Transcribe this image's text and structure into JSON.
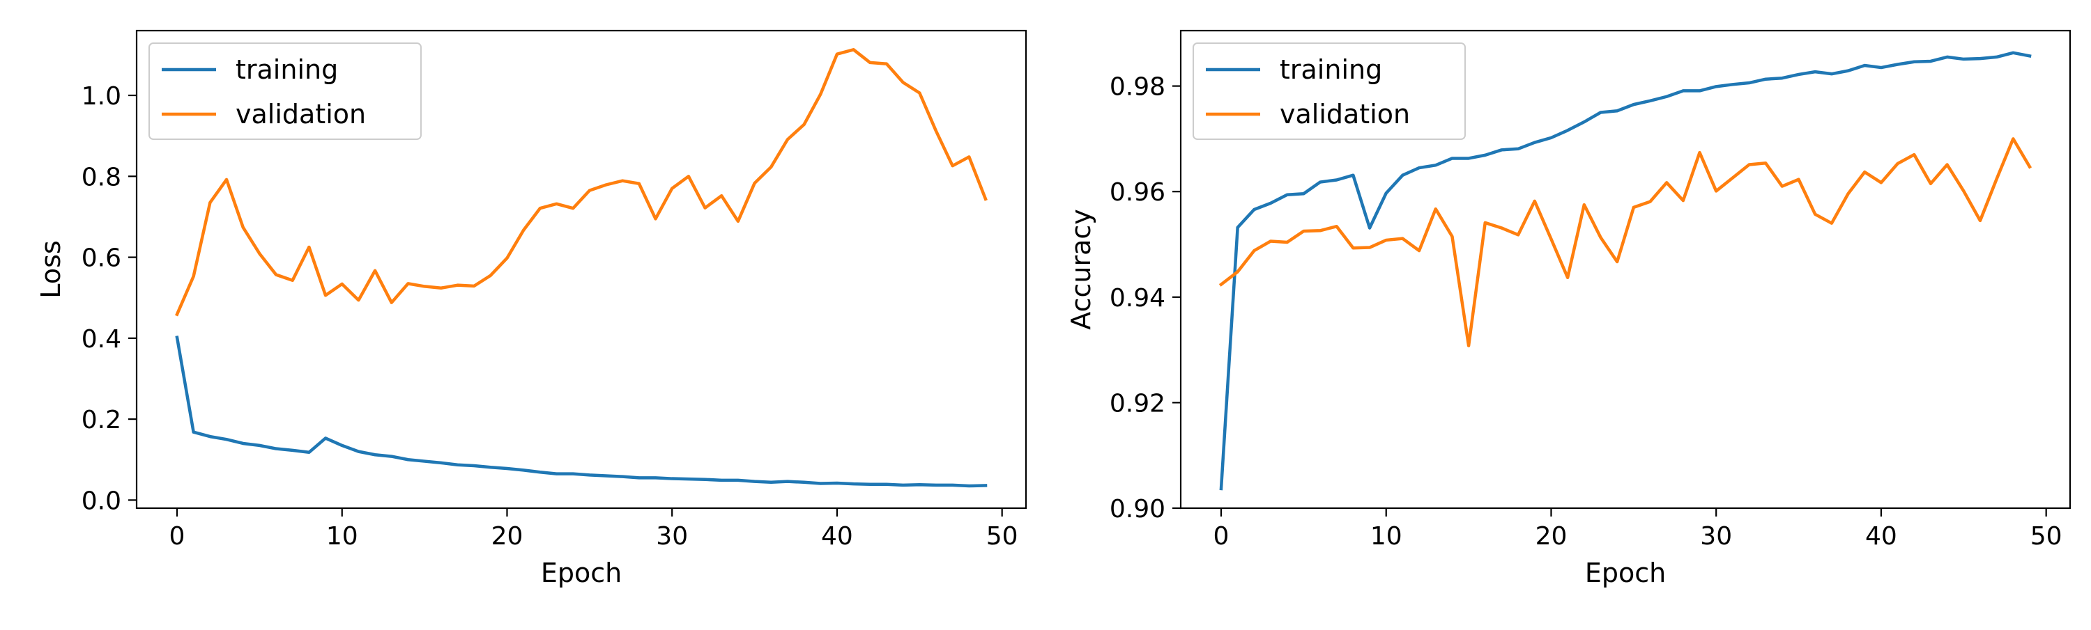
{
  "chart_data": [
    {
      "type": "line",
      "xlabel": "Epoch",
      "ylabel": "Loss",
      "xlim": [
        -2.45,
        51.45
      ],
      "ylim": [
        -0.02,
        1.16
      ],
      "xticks": [
        0,
        10,
        20,
        30,
        40,
        50
      ],
      "xtick_labels": [
        "0",
        "10",
        "20",
        "30",
        "40",
        "50"
      ],
      "yticks": [
        0.0,
        0.2,
        0.4,
        0.6,
        0.8,
        1.0
      ],
      "ytick_labels": [
        "0.0",
        "0.2",
        "0.4",
        "0.6",
        "0.8",
        "1.0"
      ],
      "grid": false,
      "legend": "upper-left",
      "x": [
        0,
        1,
        2,
        3,
        4,
        5,
        6,
        7,
        8,
        9,
        10,
        11,
        12,
        13,
        14,
        15,
        16,
        17,
        18,
        19,
        20,
        21,
        22,
        23,
        24,
        25,
        26,
        27,
        28,
        29,
        30,
        31,
        32,
        33,
        34,
        35,
        36,
        37,
        38,
        39,
        40,
        41,
        42,
        43,
        44,
        45,
        46,
        47,
        48,
        49
      ],
      "series": [
        {
          "name": "training",
          "color": "#1f77b4",
          "values": [
            0.402,
            0.168,
            0.157,
            0.15,
            0.14,
            0.135,
            0.127,
            0.123,
            0.118,
            0.153,
            0.135,
            0.12,
            0.112,
            0.108,
            0.1,
            0.096,
            0.092,
            0.087,
            0.085,
            0.081,
            0.078,
            0.074,
            0.069,
            0.065,
            0.065,
            0.062,
            0.06,
            0.058,
            0.055,
            0.055,
            0.053,
            0.052,
            0.051,
            0.049,
            0.049,
            0.046,
            0.044,
            0.046,
            0.044,
            0.041,
            0.042,
            0.04,
            0.039,
            0.039,
            0.037,
            0.038,
            0.037,
            0.037,
            0.035,
            0.036
          ]
        },
        {
          "name": "validation",
          "color": "#ff7f0e",
          "values": [
            0.459,
            0.553,
            0.735,
            0.792,
            0.674,
            0.609,
            0.557,
            0.543,
            0.625,
            0.506,
            0.534,
            0.494,
            0.567,
            0.488,
            0.535,
            0.528,
            0.524,
            0.531,
            0.529,
            0.555,
            0.598,
            0.667,
            0.721,
            0.732,
            0.721,
            0.765,
            0.779,
            0.789,
            0.782,
            0.695,
            0.77,
            0.8,
            0.722,
            0.752,
            0.689,
            0.783,
            0.823,
            0.891,
            0.928,
            1.003,
            1.102,
            1.113,
            1.081,
            1.078,
            1.032,
            1.006,
            0.912,
            0.826,
            0.848,
            0.744
          ]
        }
      ]
    },
    {
      "type": "line",
      "xlabel": "Epoch",
      "ylabel": "Accuracy",
      "xlim": [
        -2.45,
        51.45
      ],
      "ylim": [
        0.9,
        0.9905
      ],
      "xticks": [
        0,
        10,
        20,
        30,
        40,
        50
      ],
      "xtick_labels": [
        "0",
        "10",
        "20",
        "30",
        "40",
        "50"
      ],
      "yticks": [
        0.9,
        0.92,
        0.94,
        0.96,
        0.98
      ],
      "ytick_labels": [
        "0.90",
        "0.92",
        "0.94",
        "0.96",
        "0.98"
      ],
      "grid": false,
      "legend": "upper-left",
      "x": [
        0,
        1,
        2,
        3,
        4,
        5,
        6,
        7,
        8,
        9,
        10,
        11,
        12,
        13,
        14,
        15,
        16,
        17,
        18,
        19,
        20,
        21,
        22,
        23,
        24,
        25,
        26,
        27,
        28,
        29,
        30,
        31,
        32,
        33,
        34,
        35,
        36,
        37,
        38,
        39,
        40,
        41,
        42,
        43,
        44,
        45,
        46,
        47,
        48,
        49
      ],
      "series": [
        {
          "name": "training",
          "color": "#1f77b4",
          "values": [
            0.9037,
            0.9532,
            0.9566,
            0.9578,
            0.9594,
            0.9596,
            0.9618,
            0.9622,
            0.9631,
            0.9531,
            0.9597,
            0.9631,
            0.9645,
            0.965,
            0.9663,
            0.9663,
            0.9669,
            0.9679,
            0.9681,
            0.9693,
            0.9702,
            0.9716,
            0.9732,
            0.975,
            0.9753,
            0.9765,
            0.9772,
            0.978,
            0.9791,
            0.9791,
            0.9799,
            0.9803,
            0.9806,
            0.9813,
            0.9815,
            0.9822,
            0.9827,
            0.9823,
            0.9829,
            0.9839,
            0.9835,
            0.9841,
            0.9846,
            0.9847,
            0.9855,
            0.9851,
            0.9852,
            0.9855,
            0.9863,
            0.9857
          ]
        },
        {
          "name": "validation",
          "color": "#ff7f0e",
          "values": [
            0.9424,
            0.9448,
            0.9488,
            0.9506,
            0.9504,
            0.9525,
            0.9526,
            0.9534,
            0.9493,
            0.9494,
            0.9508,
            0.9511,
            0.9488,
            0.9567,
            0.9515,
            0.9308,
            0.9541,
            0.9531,
            0.9518,
            0.9582,
            0.951,
            0.9437,
            0.9575,
            0.9513,
            0.9467,
            0.957,
            0.9581,
            0.9617,
            0.9583,
            0.9674,
            0.9601,
            0.9626,
            0.9651,
            0.9654,
            0.961,
            0.9623,
            0.9557,
            0.954,
            0.9596,
            0.9637,
            0.9617,
            0.9653,
            0.967,
            0.9615,
            0.9651,
            0.9601,
            0.9545,
            0.9624,
            0.97,
            0.9647
          ]
        }
      ]
    }
  ]
}
